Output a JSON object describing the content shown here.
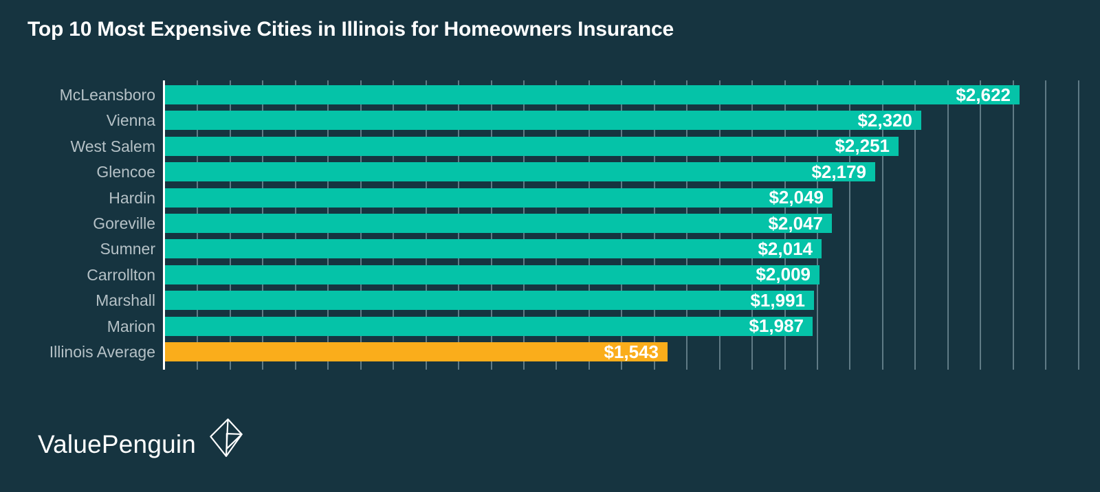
{
  "title": "Top 10 Most Expensive Cities in Illinois for Homeowners Insurance",
  "branding": {
    "logo_text": "ValuePenguin",
    "logo_icon": "origami-penguin-diamond-icon"
  },
  "colors": {
    "background": "#163440",
    "bar": "#05c3a8",
    "highlight_bar": "#faad1b",
    "title_text": "#ffffff",
    "label_text": "#b5c1c6",
    "value_text": "#ffffff",
    "gridline": "rgba(158,182,192,0.55)",
    "axis_line": "#ffffff"
  },
  "chart_data": {
    "type": "bar",
    "orientation": "horizontal",
    "title": "Top 10 Most Expensive Cities in Illinois for Homeowners Insurance",
    "xlabel": "",
    "ylabel": "",
    "categories": [
      "McLeansboro",
      "Vienna",
      "West Salem",
      "Glencoe",
      "Hardin",
      "Goreville",
      "Sumner",
      "Carrollton",
      "Marshall",
      "Marion",
      "Illinois Average"
    ],
    "values": [
      2622,
      2320,
      2251,
      2179,
      2049,
      2047,
      2014,
      2009,
      1991,
      1987,
      1543
    ],
    "value_labels": [
      "$2,622",
      "$2,320",
      "$2,251",
      "$2,179",
      "$2,049",
      "$2,047",
      "$2,014",
      "$2,009",
      "$1,991",
      "$1,987",
      "$1,543"
    ],
    "highlight_category": "Illinois Average",
    "xlim": [
      0,
      2800
    ],
    "gridline_interval": 100,
    "grid": true,
    "legend": false,
    "value_label_position": "inside-end"
  }
}
